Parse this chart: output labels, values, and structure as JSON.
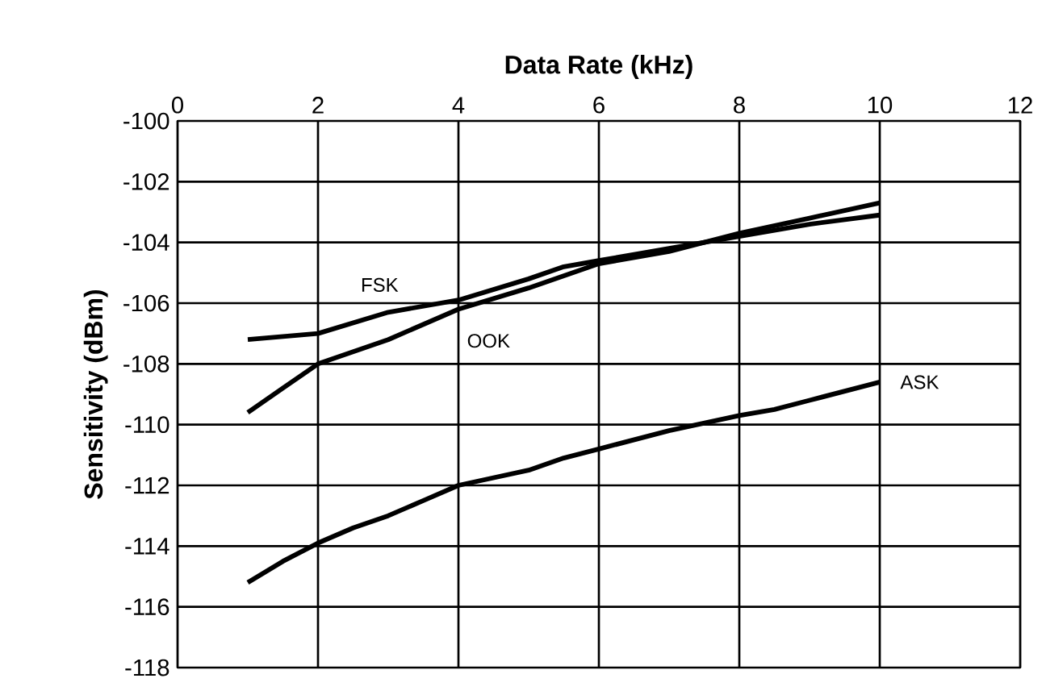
{
  "chart_data": {
    "type": "line",
    "xlabel": "Data Rate (kHz)",
    "ylabel": "Sensitivity (dBm)",
    "xlim": [
      0,
      12
    ],
    "xticks": [
      0,
      2,
      4,
      6,
      8,
      10,
      12
    ],
    "ylim": [
      -118,
      -100
    ],
    "yticks": [
      -118,
      -116,
      -114,
      -112,
      -110,
      -108,
      -106,
      -104,
      -102,
      -100
    ],
    "grid": true,
    "marker": "none",
    "line_style": "solid",
    "series": [
      {
        "name": "FSK",
        "color": "#000000",
        "x": [
          1,
          2,
          3,
          4,
          5,
          5.5,
          6,
          7,
          8,
          9,
          10
        ],
        "values": [
          -107.2,
          -107.0,
          -106.3,
          -105.9,
          -105.2,
          -104.8,
          -104.6,
          -104.2,
          -103.8,
          -103.4,
          -103.1
        ]
      },
      {
        "name": "OOK",
        "color": "#000000",
        "x": [
          1,
          1.5,
          2,
          2.5,
          3,
          4,
          5,
          6,
          7,
          8,
          9,
          10
        ],
        "values": [
          -109.6,
          -108.8,
          -108.0,
          -107.6,
          -107.2,
          -106.2,
          -105.5,
          -104.7,
          -104.3,
          -103.7,
          -103.2,
          -102.7
        ]
      },
      {
        "name": "ASK",
        "color": "#000000",
        "x": [
          1,
          1.5,
          2,
          2.5,
          3,
          3.5,
          4,
          5,
          5.5,
          6,
          7,
          8,
          8.5,
          9,
          10
        ],
        "values": [
          -115.2,
          -114.5,
          -113.9,
          -113.4,
          -113.0,
          -112.5,
          -112.0,
          -111.5,
          -111.1,
          -110.8,
          -110.2,
          -109.7,
          -109.5,
          -109.2,
          -108.6
        ]
      }
    ]
  }
}
